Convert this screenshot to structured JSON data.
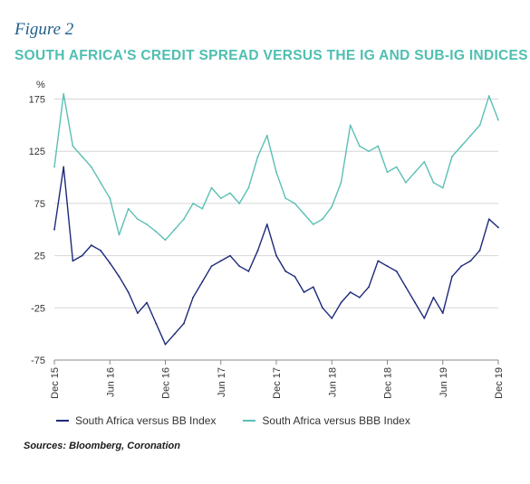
{
  "figure_label": "Figure 2",
  "source": "Sources: Bloomberg, Coronation",
  "colors": {
    "bb": "#1c2a78",
    "bbb": "#5bbfb5",
    "title": "#4fbfb0",
    "figure_label": "#1f5f8b",
    "grid": "#d6d6d6"
  },
  "chart_data": {
    "type": "line",
    "title": "SOUTH AFRICA'S CREDIT SPREAD VERSUS THE IG AND SUB-IG INDICES",
    "ylabel": "%",
    "ylim": [
      -75,
      185
    ],
    "yticks": [
      175,
      125,
      75,
      25,
      -25,
      -75
    ],
    "xlim": [
      "2015-12",
      "2019-12"
    ],
    "xticks": [
      "Dec 15",
      "Jun 16",
      "Dec 16",
      "Jun 17",
      "Dec 17",
      "Jun 18",
      "Dec 18",
      "Jun 19",
      "Dec 19"
    ],
    "grid": true,
    "legend_position": "bottom",
    "series": [
      {
        "name": "South Africa versus BB Index",
        "color": "#1c2a78",
        "x": [
          "2015-12",
          "2016-01",
          "2016-02",
          "2016-03",
          "2016-04",
          "2016-05",
          "2016-06",
          "2016-07",
          "2016-08",
          "2016-09",
          "2016-10",
          "2016-11",
          "2016-12",
          "2017-01",
          "2017-02",
          "2017-03",
          "2017-04",
          "2017-05",
          "2017-06",
          "2017-07",
          "2017-08",
          "2017-09",
          "2017-10",
          "2017-11",
          "2017-12",
          "2018-01",
          "2018-02",
          "2018-03",
          "2018-04",
          "2018-05",
          "2018-06",
          "2018-07",
          "2018-08",
          "2018-09",
          "2018-10",
          "2018-11",
          "2018-12",
          "2019-01",
          "2019-02",
          "2019-03",
          "2019-04",
          "2019-05",
          "2019-06",
          "2019-07",
          "2019-08",
          "2019-09",
          "2019-10",
          "2019-11",
          "2019-12"
        ],
        "values": [
          50,
          110,
          20,
          25,
          35,
          30,
          18,
          5,
          -10,
          -30,
          -20,
          -40,
          -60,
          -50,
          -40,
          -15,
          0,
          15,
          20,
          25,
          15,
          10,
          30,
          55,
          25,
          10,
          5,
          -10,
          -5,
          -25,
          -35,
          -20,
          -10,
          -15,
          -5,
          20,
          15,
          10,
          -5,
          -20,
          -35,
          -15,
          -30,
          5,
          15,
          20,
          30,
          60,
          52
        ]
      },
      {
        "name": "South Africa versus BBB Index",
        "color": "#5bbfb5",
        "x": [
          "2015-12",
          "2016-01",
          "2016-02",
          "2016-03",
          "2016-04",
          "2016-05",
          "2016-06",
          "2016-07",
          "2016-08",
          "2016-09",
          "2016-10",
          "2016-11",
          "2016-12",
          "2017-01",
          "2017-02",
          "2017-03",
          "2017-04",
          "2017-05",
          "2017-06",
          "2017-07",
          "2017-08",
          "2017-09",
          "2017-10",
          "2017-11",
          "2017-12",
          "2018-01",
          "2018-02",
          "2018-03",
          "2018-04",
          "2018-05",
          "2018-06",
          "2018-07",
          "2018-08",
          "2018-09",
          "2018-10",
          "2018-11",
          "2018-12",
          "2019-01",
          "2019-02",
          "2019-03",
          "2019-04",
          "2019-05",
          "2019-06",
          "2019-07",
          "2019-08",
          "2019-09",
          "2019-10",
          "2019-11",
          "2019-12"
        ],
        "values": [
          110,
          180,
          130,
          120,
          110,
          95,
          80,
          45,
          70,
          60,
          55,
          48,
          40,
          50,
          60,
          75,
          70,
          90,
          80,
          85,
          75,
          90,
          120,
          140,
          105,
          80,
          75,
          65,
          55,
          60,
          72,
          95,
          150,
          130,
          125,
          130,
          105,
          110,
          95,
          105,
          115,
          95,
          90,
          120,
          130,
          140,
          150,
          178,
          155
        ]
      }
    ]
  }
}
